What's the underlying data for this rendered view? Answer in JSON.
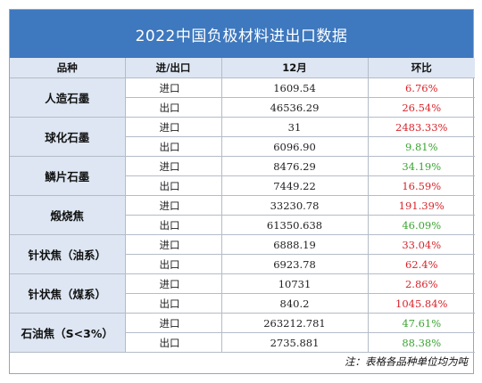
{
  "title": "2022中国负极材料进出口数据",
  "headers": [
    "品种",
    "进/出口",
    "12月",
    "环比"
  ],
  "colors": {
    "header_bar": "#3e78be",
    "category_bg": "#dde6f2",
    "increase": "#d9242b",
    "decrease": "#3aa531"
  },
  "rows": [
    {
      "category": "人造石墨",
      "items": [
        {
          "dir": "进口",
          "value": "1609.54",
          "change": "6.76%",
          "trend": "up"
        },
        {
          "dir": "出口",
          "value": "46536.29",
          "change": "26.54%",
          "trend": "up"
        }
      ]
    },
    {
      "category": "球化石墨",
      "items": [
        {
          "dir": "进口",
          "value": "31",
          "change": "2483.33%",
          "trend": "up"
        },
        {
          "dir": "出口",
          "value": "6096.90",
          "change": "9.81%",
          "trend": "down"
        }
      ]
    },
    {
      "category": "鳞片石墨",
      "items": [
        {
          "dir": "进口",
          "value": "8476.29",
          "change": "34.19%",
          "trend": "down"
        },
        {
          "dir": "出口",
          "value": "7449.22",
          "change": "16.59%",
          "trend": "up"
        }
      ]
    },
    {
      "category": "煅烧焦",
      "items": [
        {
          "dir": "进口",
          "value": "33230.78",
          "change": "191.39%",
          "trend": "up"
        },
        {
          "dir": "出口",
          "value": "61350.638",
          "change": "46.09%",
          "trend": "down"
        }
      ]
    },
    {
      "category": "针状焦（油系）",
      "items": [
        {
          "dir": "进口",
          "value": "6888.19",
          "change": "33.04%",
          "trend": "up"
        },
        {
          "dir": "出口",
          "value": "6923.78",
          "change": "62.4%",
          "trend": "up"
        }
      ]
    },
    {
      "category": "针状焦（煤系）",
      "items": [
        {
          "dir": "进口",
          "value": "10731",
          "change": "2.86%",
          "trend": "up"
        },
        {
          "dir": "出口",
          "value": "840.2",
          "change": "1045.84%",
          "trend": "up"
        }
      ]
    },
    {
      "category": "石油焦（S<3%）",
      "items": [
        {
          "dir": "进口",
          "value": "263212.781",
          "change": "47.61%",
          "trend": "down"
        },
        {
          "dir": "出口",
          "value": "2735.881",
          "change": "88.38%",
          "trend": "down"
        }
      ]
    }
  ],
  "note": "注：表格各品种单位均为吨"
}
